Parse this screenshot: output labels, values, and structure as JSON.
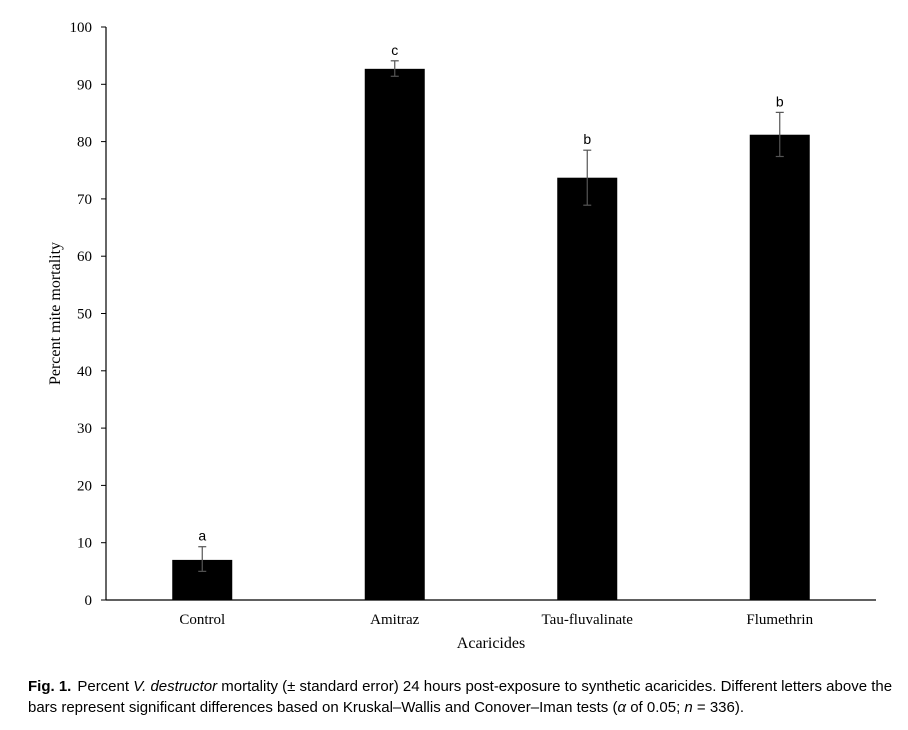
{
  "chart_data": {
    "type": "bar",
    "categories": [
      "Control",
      "Amitraz",
      "Tau-fluvalinate",
      "Flumethrin"
    ],
    "values": [
      7,
      92.7,
      73.7,
      81.2
    ],
    "error_bars": [
      {
        "low": 5,
        "high": 9.3
      },
      {
        "low": 91.4,
        "high": 94.1
      },
      {
        "low": 68.9,
        "high": 78.5
      },
      {
        "low": 77.4,
        "high": 85.1
      }
    ],
    "significance_letters": [
      "a",
      "c",
      "b",
      "b"
    ],
    "xlabel": "Acaricides",
    "ylabel": "Percent  mite mortality",
    "ylim": [
      0,
      100
    ],
    "yticks": [
      0,
      10,
      20,
      30,
      40,
      50,
      60,
      70,
      80,
      90,
      100
    ],
    "grid": false,
    "bar_color": "#000000"
  },
  "caption": {
    "fig_label": "Fig. 1.",
    "text_before_species": "Percent ",
    "species": "V. destructor",
    "text_mid": " mortality (± standard error) 24 hours post-exposure to synthetic acaricides. Different letters above the bars represent significant differences based on Kruskal–Wallis and Conover–Iman tests (",
    "alpha_symbol": "α",
    "text_alpha": " of 0.05; ",
    "n_symbol": "n",
    "text_end": " = 336)."
  }
}
